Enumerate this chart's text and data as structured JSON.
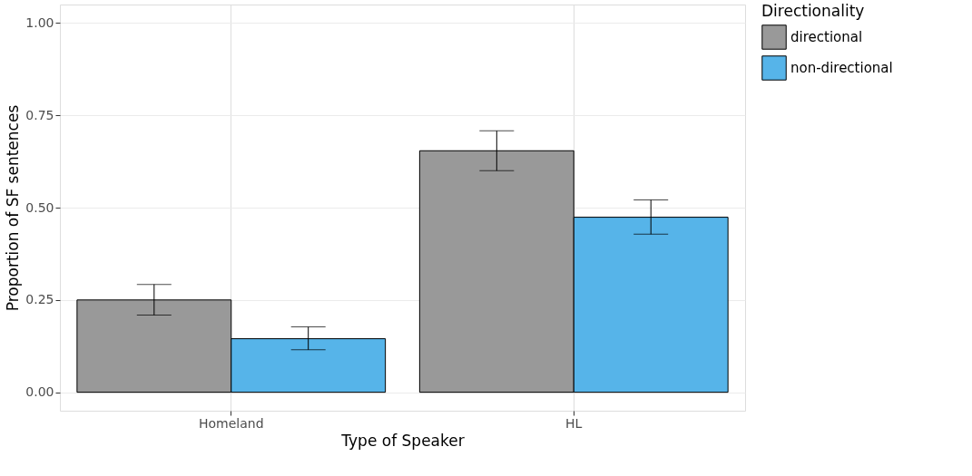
{
  "chart_data": {
    "type": "bar",
    "xlabel": "Type of Speaker",
    "ylabel": "Proportion of SF sentences",
    "legend_title": "Directionality",
    "categories": [
      "Homeland",
      "HL"
    ],
    "series": [
      {
        "name": "directional",
        "color": "#999999",
        "values": [
          0.25,
          0.654
        ],
        "errors": [
          [
            0.209,
            0.292
          ],
          [
            0.6,
            0.708
          ]
        ]
      },
      {
        "name": "non-directional",
        "color": "#56b4e9",
        "values": [
          0.145,
          0.474
        ],
        "errors": [
          [
            0.115,
            0.177
          ],
          [
            0.428,
            0.521
          ]
        ]
      }
    ],
    "ylim": [
      -0.05,
      1.05
    ],
    "yticks": [
      {
        "value": 0,
        "label": "0.00"
      },
      {
        "value": 0.25,
        "label": "0.25"
      },
      {
        "value": 0.5,
        "label": "0.50"
      },
      {
        "value": 0.75,
        "label": "0.75"
      },
      {
        "value": 1,
        "label": "1.00"
      }
    ],
    "grid": true,
    "legend": "right"
  }
}
